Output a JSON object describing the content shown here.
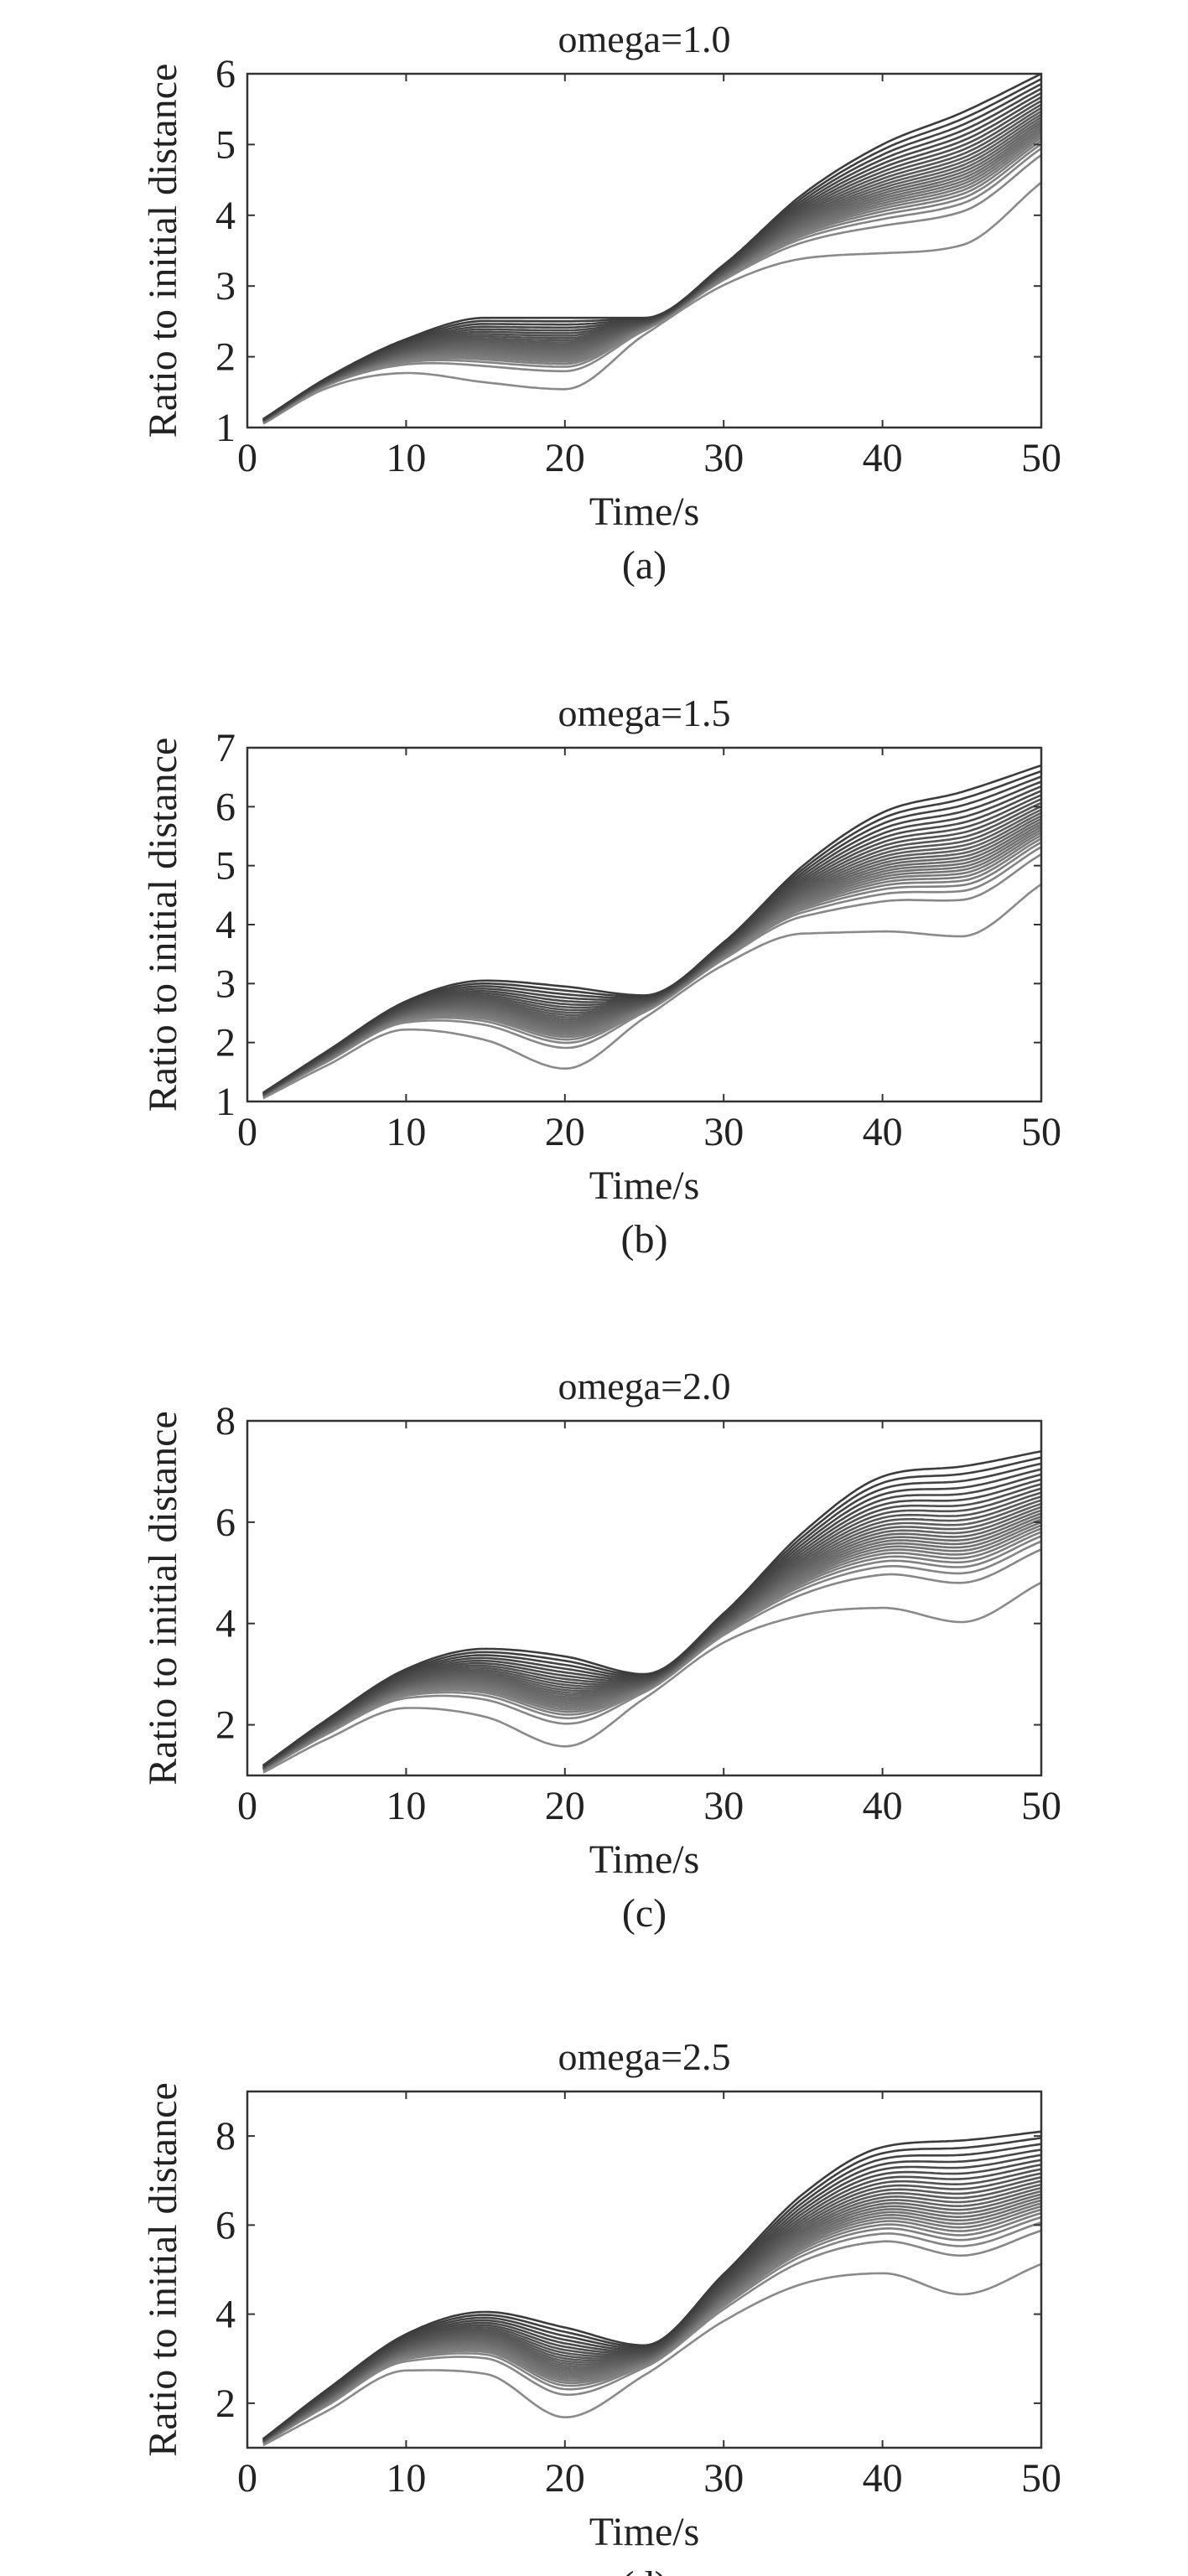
{
  "colors": {
    "axis": "#333333",
    "line_light": "#8a8a8a",
    "line_dark": "#3c3c3c"
  },
  "chart_data": [
    {
      "type": "line",
      "caption": "(a)",
      "title": "omega=1.0",
      "xlabel": "Time/s",
      "ylabel": "Ratio to initial distance",
      "xlim": [
        0,
        50
      ],
      "ylim": [
        1,
        6
      ],
      "xticks": [
        0,
        10,
        20,
        30,
        40,
        50
      ],
      "yticks": [
        1,
        2,
        3,
        4,
        5,
        6
      ],
      "x": [
        1,
        5,
        10,
        15,
        20,
        25,
        30,
        35,
        40,
        45,
        50
      ],
      "series_count": 25,
      "upper_envelope": [
        1.12,
        1.7,
        2.25,
        2.55,
        2.55,
        2.55,
        3.3,
        4.3,
        5.0,
        5.45,
        6.0
      ],
      "lower_envelope": [
        1.05,
        1.55,
        1.75,
        1.6,
        1.5,
        2.3,
        3.0,
        3.35,
        3.4,
        3.5,
        4.4
      ]
    },
    {
      "type": "line",
      "caption": "(b)",
      "title": "omega=1.5",
      "xlabel": "Time/s",
      "ylabel": "Ratio to initial distance",
      "xlim": [
        0,
        50
      ],
      "ylim": [
        1,
        7
      ],
      "xticks": [
        0,
        10,
        20,
        30,
        40,
        50
      ],
      "yticks": [
        1,
        2,
        3,
        4,
        5,
        6,
        7
      ],
      "x": [
        1,
        5,
        10,
        15,
        20,
        25,
        30,
        35,
        40,
        45,
        50
      ],
      "series_count": 25,
      "upper_envelope": [
        1.15,
        1.85,
        2.7,
        3.05,
        2.95,
        2.8,
        3.7,
        5.0,
        5.9,
        6.25,
        6.7
      ],
      "lower_envelope": [
        1.05,
        1.6,
        2.2,
        2.0,
        1.5,
        2.4,
        3.3,
        3.8,
        3.8,
        3.7,
        4.6
      ]
    },
    {
      "type": "line",
      "caption": "(c)",
      "title": "omega=2.0",
      "xlabel": "Time/s",
      "ylabel": "Ratio to initial distance",
      "xlim": [
        0,
        50
      ],
      "ylim": [
        1,
        8
      ],
      "xticks": [
        0,
        10,
        20,
        30,
        40,
        50
      ],
      "yticks": [
        2,
        4,
        6,
        8
      ],
      "x": [
        1,
        5,
        10,
        15,
        20,
        25,
        30,
        35,
        40,
        45,
        50
      ],
      "series_count": 25,
      "upper_envelope": [
        1.2,
        2.1,
        3.1,
        3.5,
        3.35,
        3.0,
        4.2,
        5.8,
        6.9,
        7.1,
        7.4
      ],
      "lower_envelope": [
        1.05,
        1.7,
        2.3,
        2.1,
        1.5,
        2.5,
        3.6,
        4.1,
        4.2,
        3.9,
        4.7
      ]
    },
    {
      "type": "line",
      "caption": "(d)",
      "title": "omega=2.5",
      "xlabel": "Time/s",
      "ylabel": "Ratio to initial distance",
      "xlim": [
        0,
        50
      ],
      "ylim": [
        1,
        9
      ],
      "xticks": [
        0,
        10,
        20,
        30,
        40,
        50
      ],
      "yticks": [
        2,
        4,
        6,
        8
      ],
      "x": [
        1,
        5,
        10,
        15,
        20,
        25,
        30,
        35,
        40,
        45,
        50
      ],
      "series_count": 25,
      "upper_envelope": [
        1.2,
        2.3,
        3.55,
        4.05,
        3.7,
        3.3,
        4.9,
        6.7,
        7.75,
        7.9,
        8.1
      ],
      "lower_envelope": [
        1.05,
        1.8,
        2.7,
        2.6,
        1.6,
        2.6,
        3.8,
        4.6,
        4.8,
        4.3,
        5.0
      ]
    }
  ]
}
